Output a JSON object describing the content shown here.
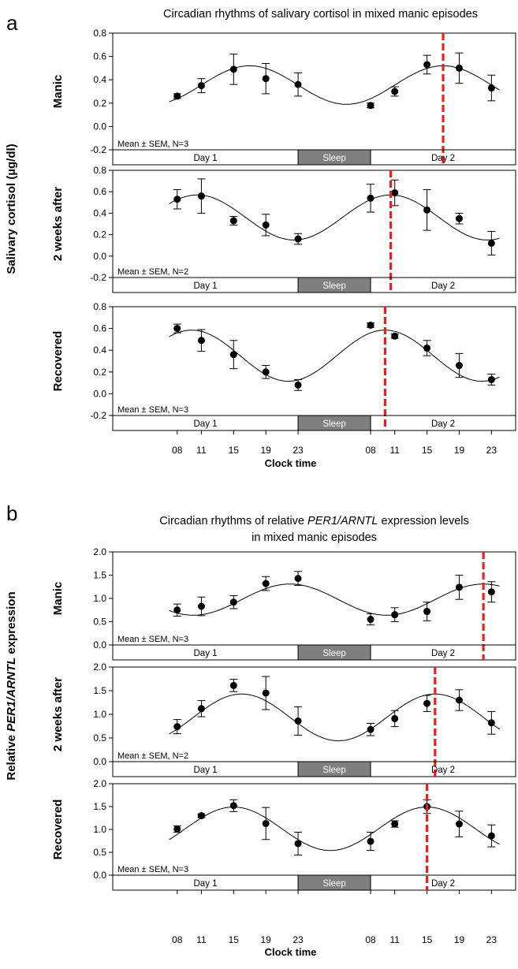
{
  "colors": {
    "points": "#000000",
    "curve": "#000000",
    "acrophase_line": "#e8211c",
    "sleep_bar": "#7f7f7f"
  },
  "chart_data": [
    {
      "panel": "a",
      "type": "scatter",
      "title": "Circadian rhythms of salivary cortisol in mixed manic episodes",
      "title_lines": [
        "Circadian rhythms of salivary cortisol in mixed manic episodes"
      ],
      "ylabel": "Salivary cortisol (µg/dl)",
      "xlabel": "Clock time",
      "x_tick_labels": [
        "08",
        "11",
        "15",
        "19",
        "23",
        "08",
        "11",
        "15",
        "19",
        "23"
      ],
      "x_positions_hours": [
        8,
        11,
        15,
        19,
        23,
        32,
        35,
        39,
        43,
        47
      ],
      "xlim_hours": [
        0,
        50
      ],
      "day_bar": {
        "day1": "Day 1",
        "sleep": "Sleep",
        "day2": "Day 2",
        "sleep_span_hours": [
          23,
          32
        ]
      },
      "ylim": [
        -0.2,
        0.8
      ],
      "yticks": [
        -0.2,
        0.0,
        0.2,
        0.4,
        0.6,
        0.8
      ],
      "ytick_labels": [
        "-0.2",
        "0.0",
        "0.2",
        "0.4",
        "0.6",
        "0.8"
      ],
      "grid": false,
      "series": [
        {
          "name": "Manic",
          "note": "Mean ± SEM, N=3",
          "y": [
            0.26,
            0.35,
            0.49,
            0.41,
            0.36,
            0.18,
            0.3,
            0.53,
            0.5,
            0.33
          ],
          "sem": [
            0.02,
            0.06,
            0.13,
            0.13,
            0.1,
            0.02,
            0.04,
            0.08,
            0.13,
            0.11
          ],
          "cosinor": {
            "mesor": 0.355,
            "amplitude": 0.165,
            "acrophase_hours": 41
          },
          "acrophase_hours": 41
        },
        {
          "name": "2 weeks after",
          "note": "Mean ± SEM, N=2",
          "y": [
            0.53,
            0.56,
            0.33,
            0.29,
            0.16,
            0.54,
            0.59,
            0.43,
            0.35,
            0.12
          ],
          "sem": [
            0.09,
            0.16,
            0.04,
            0.1,
            0.05,
            0.13,
            0.12,
            0.19,
            0.05,
            0.11
          ],
          "cosinor": {
            "mesor": 0.36,
            "amplitude": 0.21,
            "acrophase_hours": 34.5
          },
          "acrophase_hours": 34.5
        },
        {
          "name": "Recovered",
          "note": "Mean ± SEM, N=3",
          "y": [
            0.6,
            0.49,
            0.36,
            0.2,
            0.08,
            0.63,
            0.53,
            0.42,
            0.26,
            0.13
          ],
          "sem": [
            0.04,
            0.1,
            0.13,
            0.06,
            0.05,
            0.02,
            0.02,
            0.07,
            0.11,
            0.05
          ],
          "cosinor": {
            "mesor": 0.35,
            "amplitude": 0.235,
            "acrophase_hours": 33.8
          },
          "acrophase_hours": 33.8
        }
      ]
    },
    {
      "panel": "b",
      "type": "scatter",
      "title": "Circadian rhythms of relative PER1/ARNTL expression levels in mixed manic episodes",
      "title_lines": [
        "Circadian rhythms of relative PER1/ARNTL expression levels",
        "in mixed manic episodes"
      ],
      "ylabel": "Relative PER1/ARNTL expression",
      "xlabel": "Clock time",
      "x_tick_labels": [
        "08",
        "11",
        "15",
        "19",
        "23",
        "08",
        "11",
        "15",
        "19",
        "23"
      ],
      "x_positions_hours": [
        8,
        11,
        15,
        19,
        23,
        32,
        35,
        39,
        43,
        47
      ],
      "xlim_hours": [
        0,
        50
      ],
      "day_bar": {
        "day1": "Day 1",
        "sleep": "Sleep",
        "day2": "Day 2",
        "sleep_span_hours": [
          23,
          32
        ]
      },
      "ylim": [
        0.0,
        2.0
      ],
      "yticks": [
        0.0,
        0.5,
        1.0,
        1.5,
        2.0
      ],
      "ytick_labels": [
        "0.0",
        "0.5",
        "1.0",
        "1.5",
        "2.0"
      ],
      "grid": false,
      "series": [
        {
          "name": "Manic",
          "note": "Mean ± SEM, N=3",
          "y": [
            0.75,
            0.83,
            0.92,
            1.32,
            1.43,
            0.55,
            0.65,
            0.72,
            1.24,
            1.14
          ],
          "sem": [
            0.13,
            0.2,
            0.14,
            0.15,
            0.15,
            0.12,
            0.15,
            0.2,
            0.26,
            0.22
          ],
          "cosinor": {
            "mesor": 0.975,
            "amplitude": 0.335,
            "acrophase_hours": 46
          },
          "acrophase_hours": 46
        },
        {
          "name": "2 weeks after",
          "note": "Mean ± SEM, N=2",
          "y": [
            0.74,
            1.12,
            1.61,
            1.45,
            0.86,
            0.68,
            0.91,
            1.23,
            1.3,
            0.82
          ],
          "sem": [
            0.15,
            0.17,
            0.13,
            0.35,
            0.3,
            0.13,
            0.17,
            0.17,
            0.22,
            0.24
          ],
          "cosinor": {
            "mesor": 0.935,
            "amplitude": 0.495,
            "acrophase_hours": 40
          },
          "acrophase_hours": 40
        },
        {
          "name": "Recovered",
          "note": "Mean ± SEM, N=3",
          "y": [
            1.01,
            1.3,
            1.52,
            1.13,
            0.69,
            0.74,
            1.12,
            1.5,
            1.12,
            0.86
          ],
          "sem": [
            0.07,
            0.04,
            0.13,
            0.35,
            0.25,
            0.2,
            0.07,
            0.15,
            0.28,
            0.24
          ],
          "cosinor": {
            "mesor": 1.015,
            "amplitude": 0.475,
            "acrophase_hours": 39
          },
          "acrophase_hours": 39
        }
      ]
    }
  ]
}
